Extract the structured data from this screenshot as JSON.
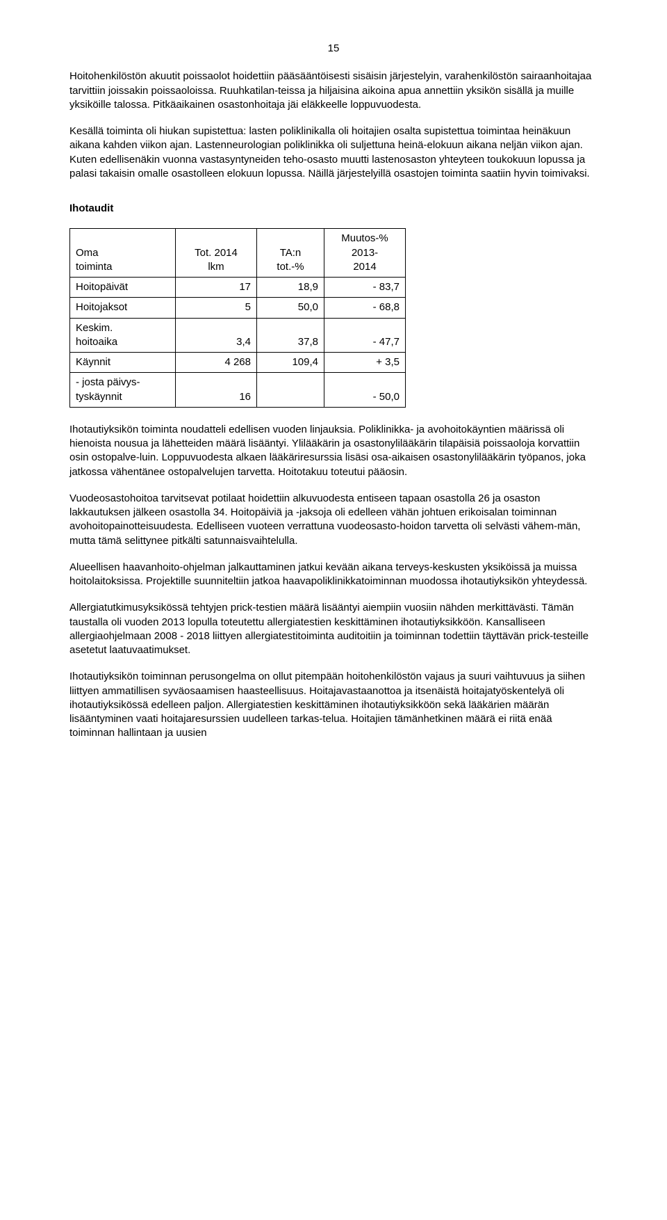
{
  "page_number": "15",
  "paras": {
    "p1": "Hoitohenkilöstön akuutit poissaolot hoidettiin pääsääntöisesti sisäisin järjestelyin, varahenkilöstön sairaanhoitajaa tarvittiin joissakin poissaoloissa. Ruuhkatilan-teissa ja hiljaisina aikoina apua annettiin yksikön sisällä ja muille yksiköille talossa. Pitkäaikainen osastonhoitaja jäi eläkkeelle loppuvuodesta.",
    "p2": "Kesällä toiminta oli hiukan supistettua: lasten poliklinikalla oli hoitajien osalta supistettua toimintaa heinäkuun aikana kahden viikon ajan. Lastenneurologian poliklinikka oli suljettuna heinä-elokuun aikana neljän viikon ajan. Kuten edellisenäkin vuonna vastasyntyneiden teho-osasto muutti lastenosaston yhteyteen toukokuun lopussa ja palasi takaisin omalle osastolleen elokuun lopussa. Näillä järjestelyillä osastojen toiminta saatiin hyvin toimivaksi.",
    "p3": "Ihotautiyksikön toiminta noudatteli edellisen vuoden linjauksia. Poliklinikka- ja avohoitokäyntien määrissä oli hienoista nousua ja lähetteiden määrä lisääntyi. Ylilääkärin ja osastonylilääkärin tilapäisiä poissaoloja korvattiin osin ostopalve-luin. Loppuvuodesta alkaen lääkäriresurssia lisäsi osa-aikaisen osastonylilääkärin työpanos, joka jatkossa vähentänee ostopalvelujen tarvetta. Hoitotakuu toteutui pääosin.",
    "p4": "Vuodeosastohoitoa tarvitsevat potilaat hoidettiin alkuvuodesta entiseen tapaan osastolla 26 ja osaston lakkautuksen jälkeen osastolla 34. Hoitopäiviä ja -jaksoja oli edelleen vähän johtuen erikoisalan toiminnan avohoitopainotteisuudesta. Edelliseen vuoteen verrattuna vuodeosasto-hoidon tarvetta oli selvästi vähem-män, mutta tämä selittynee pitkälti satunnaisvaihtelulla.",
    "p5": "Alueellisen haavanhoito-ohjelman jalkauttaminen jatkui kevään aikana terveys-keskusten yksiköissä ja muissa hoitolaitoksissa. Projektille suunniteltiin jatkoa haavapoliklinikkatoiminnan muodossa ihotautiyksikön yhteydessä.",
    "p6": "Allergiatutkimusyksikössä tehtyjen prick-testien määrä lisääntyi aiempiin vuosiin nähden merkittävästi. Tämän taustalla oli vuoden 2013 lopulla toteutettu allergiatestien keskittäminen ihotautiyksikköön.  Kansalliseen allergiaohjelmaan 2008 - 2018 liittyen allergiatestitoiminta auditoitiin ja toiminnan todettiin täyttävän prick-testeille asetetut laatuvaatimukset.",
    "p7": "Ihotautiyksikön toiminnan perusongelma on ollut pitempään hoitohenkilöstön vajaus ja suuri vaihtuvuus ja siihen liittyen ammatillisen syväosaamisen haasteellisuus. Hoitajavastaanottoa ja itsenäistä hoitajatyöskentelyä oli ihotautiyksikössä edelleen paljon. Allergiatestien keskittäminen ihotautiyksikköön sekä lääkärien määrän lisääntyminen vaati hoitajaresurssien uudelleen tarkas-telua. Hoitajien tämänhetkinen määrä ei riitä enää toiminnan hallintaan ja uusien"
  },
  "section_heading": "Ihotaudit",
  "table": {
    "headers": {
      "h1a": "Oma",
      "h1b": "toiminta",
      "h2a": "Tot. 2014",
      "h2b": "lkm",
      "h3a": "TA:n",
      "h3b": "tot.-%",
      "h4a": "Muutos-%",
      "h4b": "2013-",
      "h4c": "2014"
    },
    "rows": [
      {
        "label": "Hoitopäivät",
        "v1": "17",
        "v2": "18,9",
        "v3": "-  83,7"
      },
      {
        "label": "Hoitojaksot",
        "v1": "5",
        "v2": "50,0",
        "v3": "-  68,8"
      },
      {
        "labela": "Keskim.",
        "labelb": "hoitoaika",
        "v1": "3,4",
        "v2": "37,8",
        "v3": "-  47,7"
      },
      {
        "label": "Käynnit",
        "v1": "4 268",
        "v2": "109,4",
        "v3": "+   3,5"
      },
      {
        "labela": "- josta päivys-",
        "labelb": "tyskäynnit",
        "v1": "16",
        "v2": "",
        "v3": "-  50,0"
      }
    ]
  }
}
